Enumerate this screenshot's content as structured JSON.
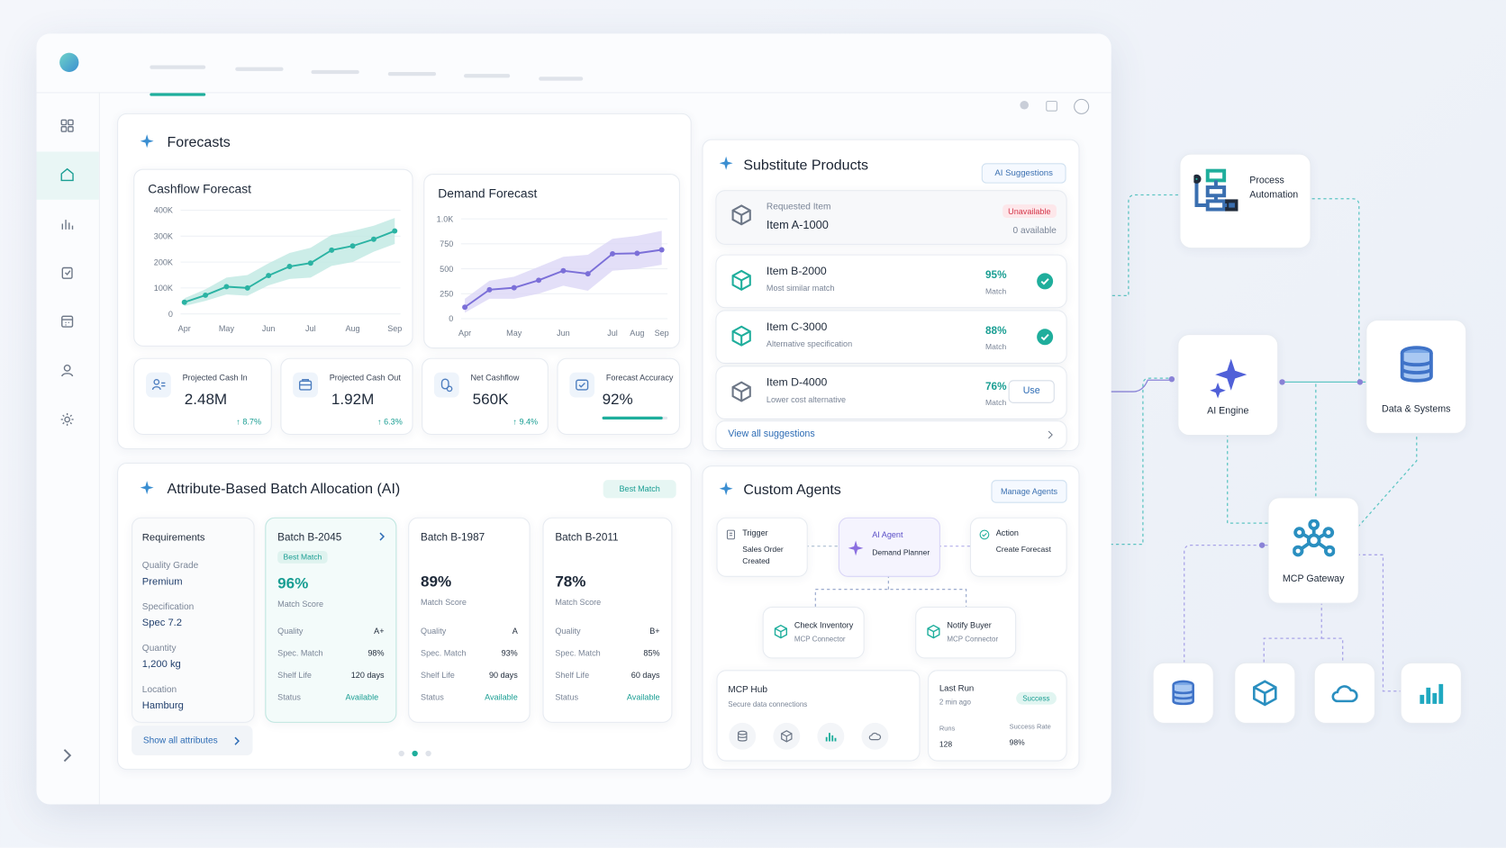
{
  "forecasts": {
    "title": "Forecasts",
    "kpis": [
      {
        "label": "Projected Cash In",
        "value": "2.48M",
        "change": "↑ 8.7%"
      },
      {
        "label": "Projected Cash Out",
        "value": "1.92M",
        "change": "↑ 6.3%"
      },
      {
        "label": "Net Cashflow",
        "value": "560K",
        "change": "↑ 9.4%"
      },
      {
        "label": "Forecast Accuracy",
        "value": {
          "value": 92,
          "label": "92%"
        }
      }
    ]
  },
  "chart_data": [
    {
      "type": "line",
      "title": "Cashflow Forecast",
      "color": "#2bb3a3",
      "band_color": "#bfe9e2",
      "categories": [
        "Apr",
        null,
        "May",
        null,
        "Jun",
        null,
        "Jul",
        null,
        "Aug",
        null,
        "Sep"
      ],
      "values": [
        45000,
        72000,
        105000,
        100000,
        148000,
        183000,
        196000,
        246000,
        262000,
        288000,
        320000
      ],
      "band_upper": [
        60000,
        95000,
        140000,
        150000,
        195000,
        235000,
        255000,
        305000,
        320000,
        340000,
        370000
      ],
      "band_lower": [
        30000,
        50000,
        75000,
        70000,
        110000,
        135000,
        140000,
        185000,
        200000,
        240000,
        270000
      ],
      "ylim": [
        0,
        400000
      ],
      "yticks": [
        0,
        {
          "value": 100000,
          "label": "100K"
        },
        {
          "value": 200000,
          "label": "200K"
        },
        {
          "value": 300000,
          "label": "300K"
        },
        {
          "value": 400000,
          "label": "400K"
        }
      ],
      "grid": true
    },
    {
      "type": "line",
      "title": "Demand Forecast",
      "color": "#7b6fd8",
      "band_color": "#dcd7f6",
      "categories": [
        "Apr",
        null,
        "May",
        null,
        "Jun",
        null,
        "Jul",
        "Aug",
        "Sep"
      ],
      "values": [
        115,
        290,
        310,
        385,
        480,
        450,
        650,
        655,
        690
      ],
      "band_upper": [
        200,
        380,
        420,
        520,
        620,
        640,
        800,
        830,
        880
      ],
      "band_lower": [
        60,
        200,
        200,
        250,
        330,
        280,
        480,
        500,
        540
      ],
      "ylim": [
        0,
        1000
      ],
      "yticks": [
        0,
        250,
        500,
        750,
        {
          "value": 1000,
          "label": "1.0K"
        }
      ],
      "grid": true
    }
  ],
  "substitutes": {
    "title": "Substitute Products",
    "badge": "AI Suggestions",
    "requested": {
      "label": "Requested Item",
      "name": "Item A-1000",
      "status": "Unavailable",
      "availability": "0 available"
    },
    "items": [
      {
        "name": "Item B-2000",
        "desc": "Most similar match",
        "score": "95%",
        "score_label": "Match"
      },
      {
        "name": "Item C-3000",
        "desc": "Alternative specification",
        "score": "88%",
        "score_label": "Match"
      },
      {
        "name": "Item D-4000",
        "desc": "Lower cost alternative",
        "score": "76%",
        "score_label": "Match",
        "action": "Use"
      }
    ],
    "link": "View all suggestions"
  },
  "batch": {
    "title": "Attribute-Based Batch Allocation (AI)",
    "badge": "Best Match",
    "requirements": {
      "title": "Requirements",
      "fields": [
        {
          "label": "Quality Grade",
          "value": "Premium"
        },
        {
          "label": "Specification",
          "value": "Spec 7.2"
        },
        {
          "label": "Quantity",
          "value": "1,200 kg"
        },
        {
          "label": "Location",
          "value": "Hamburg"
        }
      ]
    },
    "show_all": "Show all attributes",
    "batches": [
      {
        "name": "Batch B-2045",
        "badge": "Best Match",
        "score": "96%",
        "score_label": "Match Score",
        "rows": [
          {
            "label": "Quality",
            "value": "A+"
          },
          {
            "label": "Spec. Match",
            "value": "98%"
          },
          {
            "label": "Shelf Life",
            "value": "120 days"
          },
          {
            "label": "Status",
            "value": "Available"
          }
        ]
      },
      {
        "name": "Batch B-1987",
        "score": "89%",
        "score_label": "Match Score",
        "rows": [
          {
            "label": "Quality",
            "value": "A"
          },
          {
            "label": "Spec. Match",
            "value": "93%"
          },
          {
            "label": "Shelf Life",
            "value": "90 days"
          },
          {
            "label": "Status",
            "value": "Available"
          }
        ]
      },
      {
        "name": "Batch B-2011",
        "score": "78%",
        "score_label": "Match Score",
        "rows": [
          {
            "label": "Quality",
            "value": "B+"
          },
          {
            "label": "Spec. Match",
            "value": "85%"
          },
          {
            "label": "Shelf Life",
            "value": "60 days"
          },
          {
            "label": "Status",
            "value": "Available"
          }
        ]
      }
    ]
  },
  "agents": {
    "title": "Custom Agents",
    "manage": "Manage Agents",
    "steps": [
      {
        "label": "Trigger",
        "text": "Sales Order Created"
      },
      {
        "label": "AI Agent",
        "text": "Demand Planner"
      },
      {
        "label": "Action",
        "text": "Create Forecast"
      }
    ],
    "tools": [
      {
        "title": "Check Inventory",
        "sub": "MCP Connector"
      },
      {
        "title": "Notify Buyer",
        "sub": "MCP Connector"
      }
    ],
    "hub": {
      "title": "MCP Hub",
      "sub": "Secure data connections"
    },
    "last_run": {
      "title": "Last Run",
      "time": "2 min ago",
      "status": "Success",
      "runs_label": "Runs",
      "runs": "128",
      "rate_label": "Success Rate",
      "rate": "98%"
    }
  },
  "diagram": {
    "nodes": [
      {
        "label": "Process Automation"
      },
      {
        "label": "AI Engine"
      },
      {
        "label": "Data & Systems"
      },
      {
        "label": "MCP Gateway"
      }
    ]
  }
}
